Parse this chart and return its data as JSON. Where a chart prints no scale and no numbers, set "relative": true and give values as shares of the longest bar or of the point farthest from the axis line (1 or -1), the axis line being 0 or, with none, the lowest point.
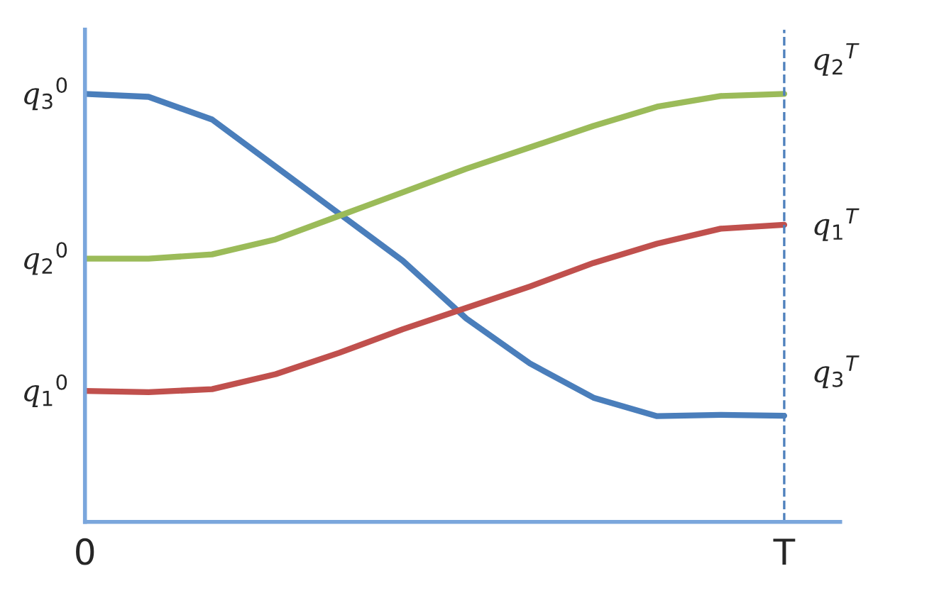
{
  "chart_data": {
    "type": "line",
    "relative": true,
    "categories": [
      "0",
      null,
      null,
      null,
      null,
      null,
      null,
      null,
      null,
      null,
      null,
      "T"
    ],
    "series": [
      {
        "color": "#4a7ebb",
        "values": [
          1,
          0.993,
          0.94,
          0.83,
          0.72,
          0.61,
          0.475,
          0.37,
          0.29,
          0.247,
          0.25,
          0.248
        ]
      },
      {
        "color": "#9bbb59",
        "values": [
          0.615,
          0.615,
          0.625,
          0.66,
          0.715,
          0.77,
          0.825,
          0.875,
          0.925,
          0.97,
          0.995,
          1
        ]
      },
      {
        "color": "#c0504d",
        "values": [
          0.306,
          0.303,
          0.31,
          0.345,
          0.395,
          0.45,
          0.5,
          0.55,
          0.605,
          0.65,
          0.685,
          0.694
        ]
      }
    ],
    "ref_lines": [
      {
        "axis": "x",
        "value": "T",
        "color": "#4f81bd",
        "line_style": "dashed"
      }
    ],
    "annotations": [
      {
        "text": "q$_{3}$$^{0}$",
        "x": "0",
        "y": 1
      },
      {
        "text": "q$_{2}$$^{0}$",
        "x": "0",
        "y": 0.615
      },
      {
        "text": "q$_{1}$$^{0}$",
        "x": "0",
        "y": 0.306
      },
      {
        "text": "q$_{2}$$^{T}$",
        "x": "T",
        "y": 1.08
      },
      {
        "text": "q$_{1}$$^{T}$",
        "x": "T",
        "y": 0.694
      },
      {
        "text": "q$_{3}$$^{T}$",
        "x": "T",
        "y": 0.35
      }
    ],
    "grid": false,
    "line_style": "solid",
    "marker": "none"
  }
}
